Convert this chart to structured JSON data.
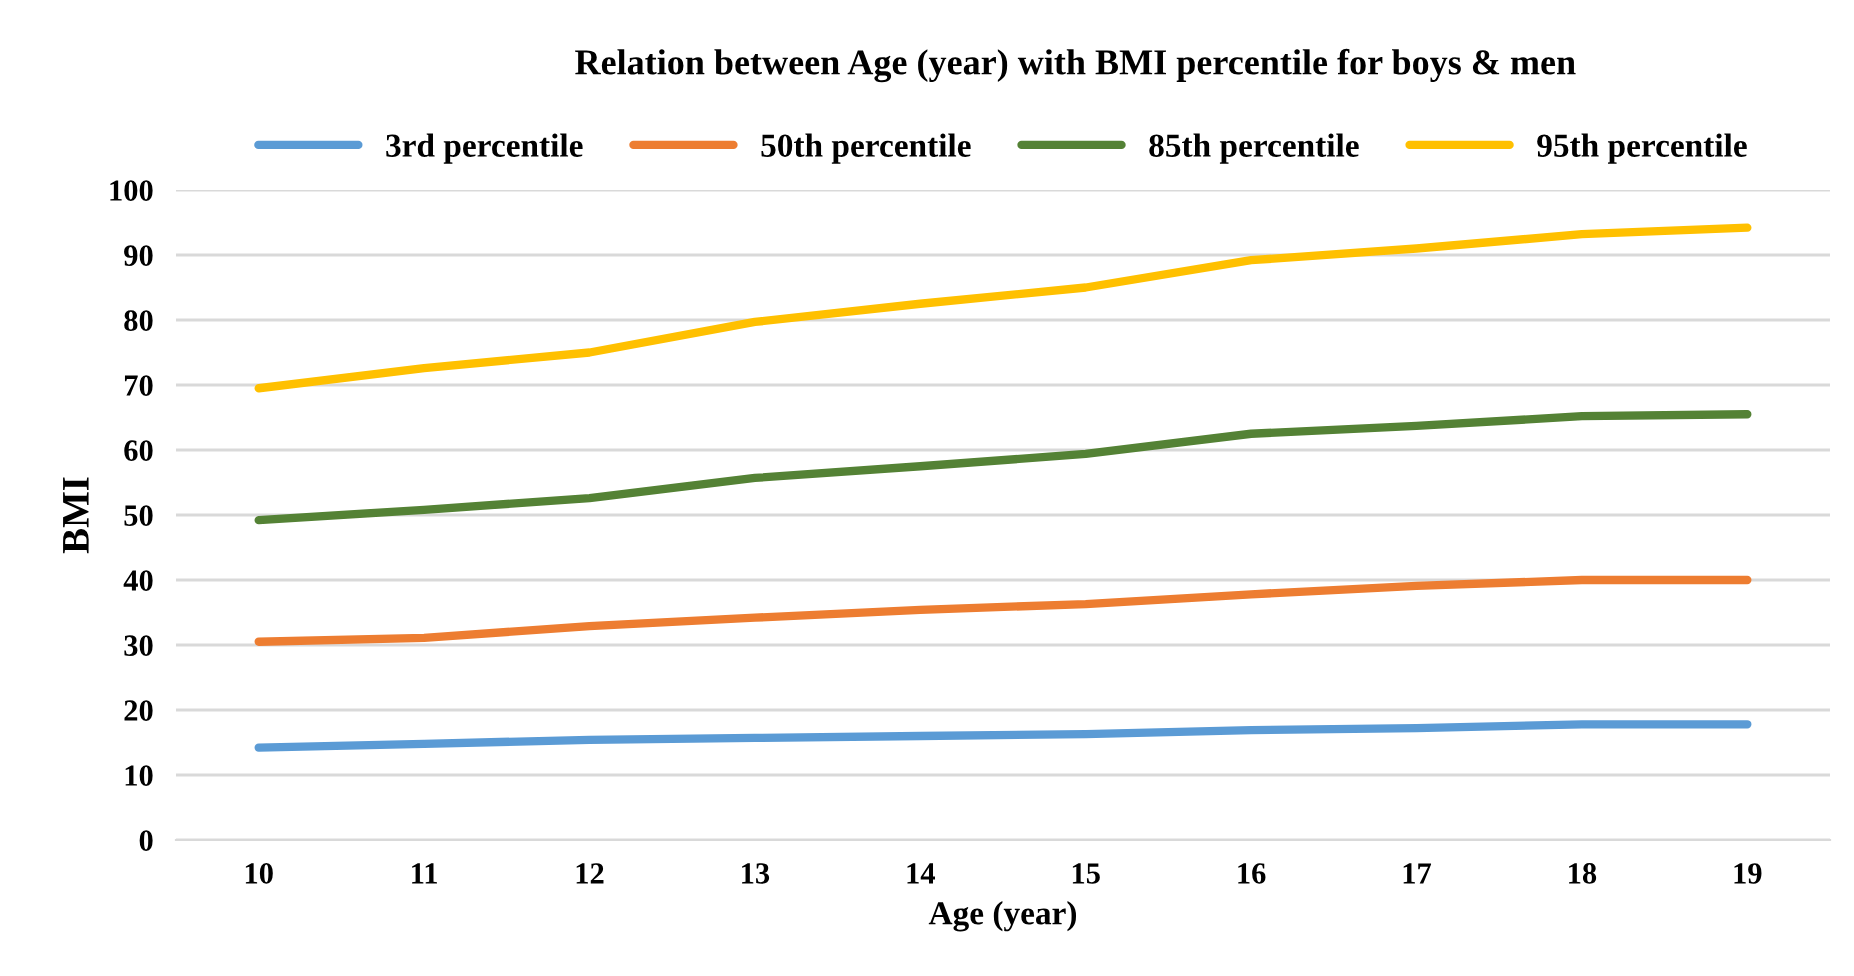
{
  "chart_data": {
    "type": "line",
    "title": "Relation between Age (year) with BMI percentile for boys & men",
    "xlabel": "Age (year)",
    "ylabel": "BMI",
    "categories": [
      "10",
      "11",
      "12",
      "13",
      "14",
      "15",
      "16",
      "17",
      "18",
      "19"
    ],
    "series": [
      {
        "name": "3rd percentile",
        "color": "#5b9bd5",
        "values": [
          14.2,
          14.8,
          15.4,
          15.7,
          16,
          16.3,
          16.9,
          17.2,
          17.8,
          17.8
        ]
      },
      {
        "name": "50th percentile",
        "color": "#ed7d31",
        "values": [
          30.5,
          31.1,
          32.9,
          34.2,
          35.4,
          36.3,
          37.8,
          39.1,
          40,
          40
        ]
      },
      {
        "name": "85th percentile",
        "color": "#548235",
        "values": [
          49.2,
          50.8,
          52.6,
          55.7,
          57.5,
          59.4,
          62.5,
          63.7,
          65.2,
          65.5
        ]
      },
      {
        "name": "95th percentile",
        "color": "#ffc000",
        "values": [
          69.5,
          72.6,
          75,
          79.7,
          82.5,
          85,
          89.2,
          91,
          93.2,
          94.2
        ]
      }
    ],
    "ylim": [
      0,
      100
    ],
    "yticks": [
      0,
      10,
      20,
      30,
      40,
      50,
      60,
      70,
      80,
      90,
      100
    ],
    "grid": "y",
    "legend": "top",
    "marker": "none",
    "line_style": "solid"
  }
}
